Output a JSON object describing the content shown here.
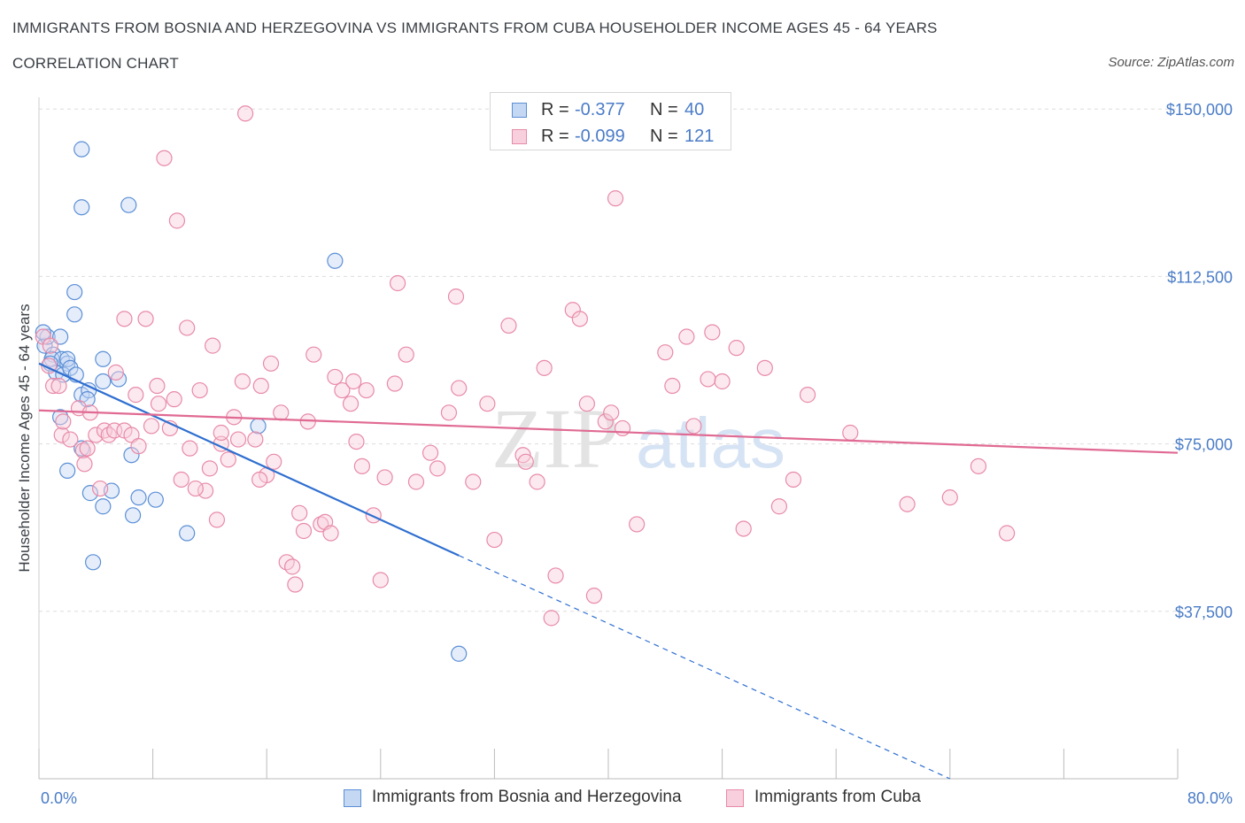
{
  "header": {
    "title": "IMMIGRANTS FROM BOSNIA AND HERZEGOVINA VS IMMIGRANTS FROM CUBA HOUSEHOLDER INCOME AGES 45 - 64 YEARS",
    "subtitle": "CORRELATION CHART",
    "source": "Source: ZipAtlas.com"
  },
  "legend": {
    "rows": [
      {
        "r_label": "R =",
        "r_value": "-0.377",
        "n_label": "N =",
        "n_value": "40"
      },
      {
        "r_label": "R =",
        "r_value": "-0.099",
        "n_label": "N =",
        "n_value": "121"
      }
    ]
  },
  "bottom_legend": {
    "items": [
      {
        "label": "Immigrants from Bosnia and Herzegovina"
      },
      {
        "label": "Immigrants from Cuba"
      }
    ]
  },
  "watermark": {
    "zip": "ZIP",
    "atlas": "atlas"
  },
  "colors": {
    "blue": "#5b8fd6",
    "blue_fill": "#c5d8f3",
    "blue_line": "#2f6fd0",
    "pink": "#e88aa8",
    "pink_fill": "#f8cfdc",
    "pink_line": "#e06a93",
    "grid": "#dddddd",
    "tick_text": "#4a7cc7"
  },
  "chart_data": {
    "type": "scatter",
    "xlabel": "",
    "ylabel": "Householder Income Ages 45 - 64 years",
    "xlim": [
      0,
      80
    ],
    "ylim": [
      0,
      155000
    ],
    "x_tick_labels": [
      "0.0%",
      "80.0%"
    ],
    "y_ticks": [
      37500,
      75000,
      112500,
      150000
    ],
    "y_tick_labels": [
      "$37,500",
      "$75,000",
      "$112,500",
      "$150,000"
    ],
    "grid": true,
    "legend_position": "top-center",
    "series": [
      {
        "name": "Immigrants from Bosnia and Herzegovina",
        "points": [
          [
            0.4,
            97000
          ],
          [
            0.6,
            99000
          ],
          [
            0.3,
            100000
          ],
          [
            1.0,
            95000
          ],
          [
            0.9,
            94000
          ],
          [
            1.2,
            91000
          ],
          [
            1.6,
            94000
          ],
          [
            1.5,
            99000
          ],
          [
            2.0,
            93000
          ],
          [
            2.0,
            94000
          ],
          [
            1.7,
            90500
          ],
          [
            2.2,
            92000
          ],
          [
            2.5,
            109000
          ],
          [
            2.5,
            104000
          ],
          [
            3.0,
            141000
          ],
          [
            3.0,
            128000
          ],
          [
            6.3,
            128500
          ],
          [
            3.0,
            86000
          ],
          [
            3.5,
            87000
          ],
          [
            3.4,
            85000
          ],
          [
            1.5,
            81000
          ],
          [
            4.5,
            94000
          ],
          [
            5.6,
            89500
          ],
          [
            4.5,
            89000
          ],
          [
            3.0,
            74000
          ],
          [
            2.0,
            69000
          ],
          [
            3.6,
            64000
          ],
          [
            4.5,
            61000
          ],
          [
            5.1,
            64500
          ],
          [
            6.5,
            72500
          ],
          [
            7.0,
            63000
          ],
          [
            6.6,
            59000
          ],
          [
            8.2,
            62500
          ],
          [
            10.4,
            55000
          ],
          [
            3.8,
            48500
          ],
          [
            15.4,
            79000
          ],
          [
            20.8,
            116000
          ],
          [
            29.5,
            28000
          ],
          [
            2.6,
            90500
          ],
          [
            0.8,
            93000
          ]
        ]
      },
      {
        "name": "Immigrants from Cuba",
        "points": [
          [
            0.3,
            99000
          ],
          [
            0.8,
            97000
          ],
          [
            0.7,
            92500
          ],
          [
            1.0,
            88000
          ],
          [
            1.4,
            88000
          ],
          [
            1.6,
            77000
          ],
          [
            1.7,
            80000
          ],
          [
            2.2,
            76000
          ],
          [
            2.8,
            83000
          ],
          [
            3.1,
            73500
          ],
          [
            3.4,
            74000
          ],
          [
            3.6,
            82000
          ],
          [
            4.0,
            77000
          ],
          [
            4.6,
            78000
          ],
          [
            4.9,
            77000
          ],
          [
            5.3,
            78000
          ],
          [
            5.4,
            91000
          ],
          [
            6.0,
            103000
          ],
          [
            6.0,
            78000
          ],
          [
            6.5,
            77000
          ],
          [
            7.0,
            74500
          ],
          [
            7.5,
            103000
          ],
          [
            8.3,
            88000
          ],
          [
            8.4,
            84000
          ],
          [
            8.8,
            139000
          ],
          [
            9.2,
            78500
          ],
          [
            9.7,
            125000
          ],
          [
            10.4,
            101000
          ],
          [
            10.6,
            74000
          ],
          [
            11.3,
            87000
          ],
          [
            11.7,
            64500
          ],
          [
            12.0,
            69500
          ],
          [
            12.2,
            97000
          ],
          [
            12.8,
            75000
          ],
          [
            12.8,
            77500
          ],
          [
            13.3,
            71500
          ],
          [
            13.7,
            81000
          ],
          [
            14.0,
            76000
          ],
          [
            14.5,
            149000
          ],
          [
            15.2,
            76000
          ],
          [
            15.6,
            88000
          ],
          [
            16.0,
            68000
          ],
          [
            16.3,
            93000
          ],
          [
            16.5,
            71000
          ],
          [
            17.4,
            48500
          ],
          [
            17.8,
            47500
          ],
          [
            18.0,
            43500
          ],
          [
            18.3,
            59500
          ],
          [
            18.6,
            55500
          ],
          [
            18.9,
            80000
          ],
          [
            19.3,
            95000
          ],
          [
            19.8,
            57000
          ],
          [
            20.1,
            57500
          ],
          [
            20.5,
            55000
          ],
          [
            21.3,
            87000
          ],
          [
            21.9,
            84000
          ],
          [
            22.1,
            89000
          ],
          [
            22.3,
            75500
          ],
          [
            22.7,
            70000
          ],
          [
            23.5,
            59000
          ],
          [
            24.0,
            44500
          ],
          [
            24.3,
            67500
          ],
          [
            25.0,
            88500
          ],
          [
            25.2,
            111000
          ],
          [
            25.8,
            95000
          ],
          [
            26.5,
            66500
          ],
          [
            27.5,
            73000
          ],
          [
            28.0,
            69500
          ],
          [
            28.8,
            82000
          ],
          [
            29.3,
            108000
          ],
          [
            29.5,
            87500
          ],
          [
            30.5,
            66500
          ],
          [
            31.5,
            84000
          ],
          [
            32.0,
            53500
          ],
          [
            33.0,
            101500
          ],
          [
            34.0,
            72500
          ],
          [
            34.2,
            71000
          ],
          [
            35.0,
            66500
          ],
          [
            35.5,
            92000
          ],
          [
            36.3,
            45500
          ],
          [
            37.5,
            105000
          ],
          [
            38.0,
            103000
          ],
          [
            38.5,
            84000
          ],
          [
            39.0,
            41000
          ],
          [
            39.8,
            80000
          ],
          [
            40.2,
            82000
          ],
          [
            40.5,
            130000
          ],
          [
            41.0,
            78500
          ],
          [
            42.0,
            57000
          ],
          [
            44.0,
            95500
          ],
          [
            45.5,
            99000
          ],
          [
            46.0,
            79000
          ],
          [
            47.0,
            89500
          ],
          [
            47.3,
            100000
          ],
          [
            48.0,
            89000
          ],
          [
            49.0,
            96500
          ],
          [
            49.5,
            56000
          ],
          [
            51.0,
            92000
          ],
          [
            52.0,
            61000
          ],
          [
            53.0,
            67000
          ],
          [
            54.0,
            86000
          ],
          [
            57.0,
            77500
          ],
          [
            61.0,
            61500
          ],
          [
            64.0,
            63000
          ],
          [
            66.0,
            70000
          ],
          [
            68.0,
            55000
          ],
          [
            14.3,
            89000
          ],
          [
            7.9,
            79000
          ],
          [
            4.3,
            65000
          ],
          [
            9.5,
            85000
          ],
          [
            17.0,
            82000
          ],
          [
            11.0,
            65000
          ],
          [
            20.8,
            90000
          ],
          [
            23.0,
            87000
          ],
          [
            6.8,
            86000
          ],
          [
            3.2,
            70500
          ],
          [
            10.0,
            67000
          ],
          [
            15.5,
            67000
          ],
          [
            12.5,
            58000
          ],
          [
            44.5,
            88000
          ],
          [
            36.0,
            36000
          ]
        ]
      }
    ],
    "trend_lines": [
      {
        "series": "Immigrants from Bosnia and Herzegovina",
        "solid": [
          [
            0,
            93000
          ],
          [
            29.5,
            50000
          ]
        ],
        "dashed": [
          [
            29.5,
            50000
          ],
          [
            64,
            0
          ]
        ]
      },
      {
        "series": "Immigrants from Cuba",
        "solid": [
          [
            0,
            82500
          ],
          [
            80,
            73000
          ]
        ]
      }
    ]
  }
}
